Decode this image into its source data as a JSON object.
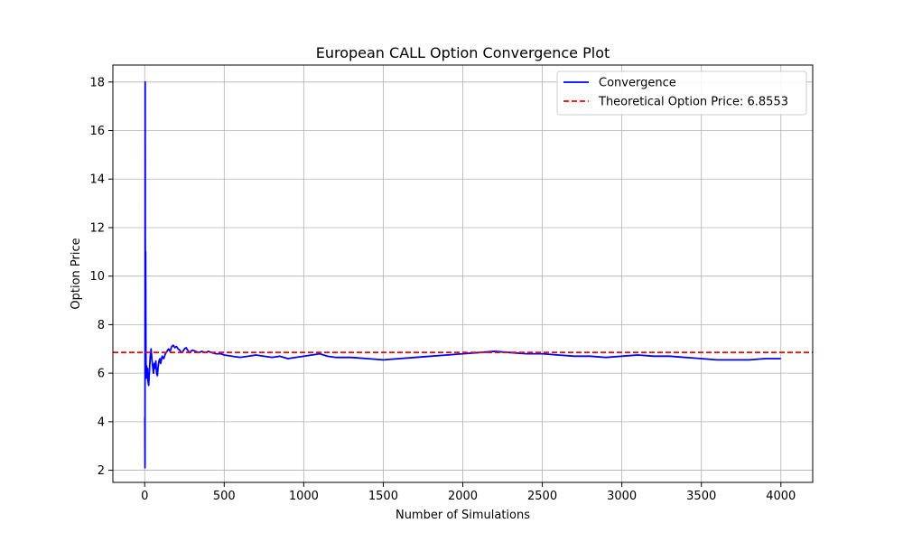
{
  "chart_data": {
    "type": "line",
    "title": "European CALL Option Convergence Plot",
    "xlabel": "Number of Simulations",
    "ylabel": "Option Price",
    "xlim": [
      -200,
      4200
    ],
    "ylim": [
      1.5,
      18.7
    ],
    "xticks": [
      0,
      500,
      1000,
      1500,
      2000,
      2500,
      3000,
      3500,
      4000
    ],
    "yticks": [
      2,
      4,
      6,
      8,
      10,
      12,
      14,
      16,
      18
    ],
    "grid": true,
    "legend_position": "top-right",
    "series": [
      {
        "name": "Convergence",
        "color": "#0000ff",
        "style": "solid",
        "x": [
          1,
          2,
          3,
          4,
          5,
          6,
          7,
          8,
          10,
          12,
          15,
          18,
          20,
          25,
          30,
          35,
          40,
          45,
          50,
          55,
          60,
          65,
          70,
          75,
          80,
          85,
          90,
          95,
          100,
          110,
          120,
          130,
          140,
          150,
          160,
          170,
          180,
          190,
          200,
          210,
          220,
          230,
          240,
          250,
          260,
          270,
          280,
          290,
          300,
          320,
          340,
          360,
          380,
          400,
          420,
          450,
          480,
          500,
          550,
          600,
          650,
          700,
          750,
          800,
          850,
          900,
          950,
          1000,
          1050,
          1100,
          1150,
          1200,
          1300,
          1400,
          1500,
          1600,
          1700,
          1800,
          1900,
          2000,
          2100,
          2200,
          2300,
          2400,
          2500,
          2600,
          2700,
          2800,
          2900,
          3000,
          3100,
          3200,
          3300,
          3400,
          3500,
          3600,
          3700,
          3800,
          3900,
          4000
        ],
        "values": [
          4.2,
          2.1,
          18.0,
          9.5,
          7.0,
          11.0,
          8.5,
          6.5,
          5.8,
          6.3,
          5.9,
          6.2,
          5.7,
          5.5,
          6.1,
          6.7,
          7.0,
          6.6,
          6.3,
          6.0,
          6.4,
          6.2,
          6.5,
          6.0,
          5.9,
          6.3,
          6.5,
          6.6,
          6.4,
          6.7,
          6.6,
          6.8,
          6.9,
          7.0,
          6.9,
          7.1,
          7.15,
          7.05,
          7.1,
          7.0,
          6.95,
          6.85,
          6.9,
          7.0,
          7.05,
          6.95,
          6.85,
          6.9,
          6.95,
          6.9,
          6.85,
          6.9,
          6.85,
          6.9,
          6.85,
          6.8,
          6.8,
          6.75,
          6.7,
          6.65,
          6.7,
          6.75,
          6.7,
          6.65,
          6.7,
          6.6,
          6.65,
          6.7,
          6.75,
          6.8,
          6.7,
          6.65,
          6.65,
          6.6,
          6.55,
          6.6,
          6.65,
          6.7,
          6.75,
          6.8,
          6.85,
          6.9,
          6.85,
          6.8,
          6.8,
          6.75,
          6.7,
          6.7,
          6.65,
          6.7,
          6.75,
          6.7,
          6.7,
          6.65,
          6.6,
          6.55,
          6.55,
          6.55,
          6.6,
          6.6
        ]
      },
      {
        "name": "Theoretical Option Price: 6.8553",
        "color": "#ff0000",
        "style": "dashed",
        "y": 6.8553
      }
    ]
  }
}
